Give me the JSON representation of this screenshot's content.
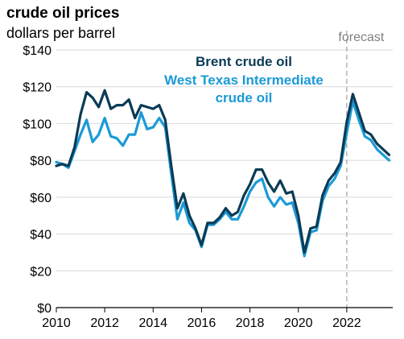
{
  "chart_data": {
    "type": "line",
    "title": "crude oil prices",
    "subtitle": "dollars per barrel",
    "annotation": "forecast",
    "forecast_start": 2022,
    "xlim": [
      2010,
      2023.9
    ],
    "ylim": [
      0,
      140
    ],
    "x_ticks": [
      2010,
      2012,
      2014,
      2016,
      2018,
      2020,
      2022
    ],
    "y_ticks": [
      0,
      20,
      40,
      60,
      80,
      100,
      120,
      140
    ],
    "y_tick_labels": [
      "$0",
      "$20",
      "$40",
      "$60",
      "$80",
      "$100",
      "$120",
      "$140"
    ],
    "legend": {
      "lines": [
        "Brent crude oil",
        "West Texas Intermediate",
        "crude oil"
      ]
    },
    "colors": {
      "brent": "#0b3b55",
      "wti": "#1b9ad6",
      "forecast_line": "#a6a6a6"
    },
    "x": [
      2010.0,
      2010.25,
      2010.5,
      2010.75,
      2011.0,
      2011.25,
      2011.5,
      2011.75,
      2012.0,
      2012.25,
      2012.5,
      2012.75,
      2013.0,
      2013.25,
      2013.5,
      2013.75,
      2014.0,
      2014.25,
      2014.5,
      2014.75,
      2015.0,
      2015.25,
      2015.5,
      2015.75,
      2016.0,
      2016.25,
      2016.5,
      2016.75,
      2017.0,
      2017.25,
      2017.5,
      2017.75,
      2018.0,
      2018.25,
      2018.5,
      2018.75,
      2019.0,
      2019.25,
      2019.5,
      2019.75,
      2020.0,
      2020.25,
      2020.5,
      2020.75,
      2021.0,
      2021.25,
      2021.5,
      2021.75,
      2022.0,
      2022.25,
      2022.5,
      2022.75,
      2023.0,
      2023.25,
      2023.5,
      2023.75
    ],
    "series": [
      {
        "name": "Brent crude oil",
        "values": [
          77,
          78,
          77,
          87,
          105,
          117,
          114,
          109,
          118,
          108,
          110,
          110,
          113,
          103,
          110,
          109,
          108,
          110,
          102,
          77,
          54,
          62,
          50,
          43,
          34,
          46,
          46,
          49,
          54,
          50,
          52,
          61,
          67,
          75,
          75,
          68,
          63,
          69,
          62,
          63,
          50,
          30,
          43,
          44,
          61,
          69,
          73,
          79,
          101,
          116,
          106,
          96,
          94,
          89,
          86,
          83
        ]
      },
      {
        "name": "West Texas Intermediate",
        "values": [
          79,
          78,
          76,
          85,
          94,
          102,
          90,
          94,
          103,
          93,
          92,
          88,
          94,
          94,
          106,
          97,
          98,
          103,
          98,
          73,
          48,
          57,
          46,
          42,
          33,
          45,
          45,
          48,
          52,
          48,
          48,
          55,
          63,
          68,
          70,
          60,
          55,
          60,
          56,
          57,
          46,
          28,
          41,
          42,
          58,
          66,
          70,
          77,
          95,
          112,
          102,
          93,
          91,
          86,
          83,
          80
        ]
      }
    ]
  }
}
